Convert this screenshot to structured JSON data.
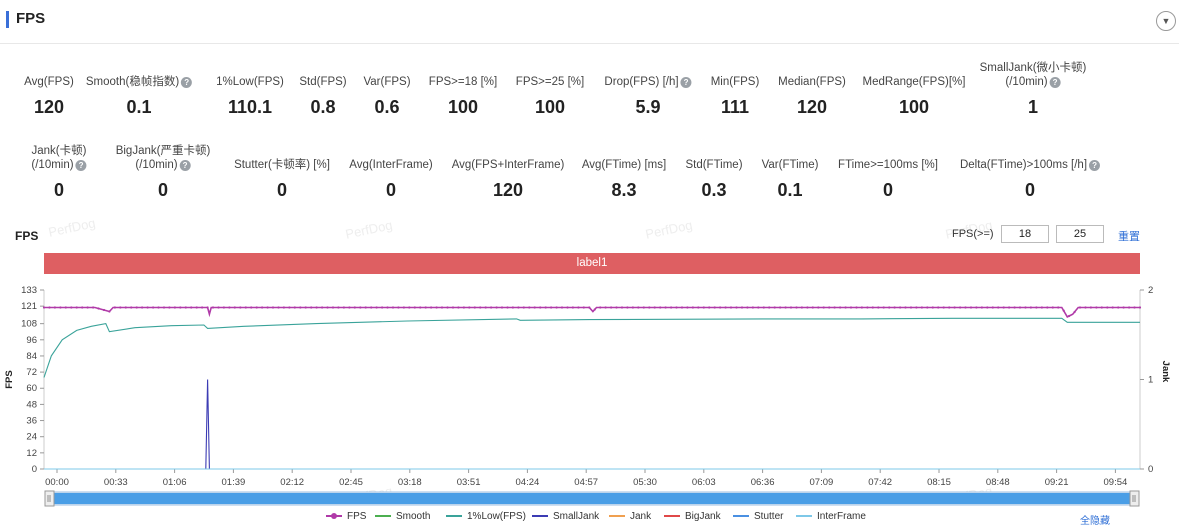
{
  "header": {
    "title": "FPS",
    "collapse_icon": "chevron-down-icon"
  },
  "metrics_row1": [
    {
      "label": "Avg(FPS)",
      "value": "120",
      "help": false
    },
    {
      "label": "Smooth(稳帧指数)",
      "value": "0.1",
      "help": true
    },
    {
      "label": "1%Low(FPS)",
      "value": "110.1",
      "help": false
    },
    {
      "label": "Std(FPS)",
      "value": "0.8",
      "help": false
    },
    {
      "label": "Var(FPS)",
      "value": "0.6",
      "help": false
    },
    {
      "label": "FPS>=18 [%]",
      "value": "100",
      "help": false
    },
    {
      "label": "FPS>=25 [%]",
      "value": "100",
      "help": false
    },
    {
      "label": "Drop(FPS) [/h]",
      "value": "5.9",
      "help": true
    },
    {
      "label": "Min(FPS)",
      "value": "111",
      "help": false
    },
    {
      "label": "Median(FPS)",
      "value": "120",
      "help": false
    },
    {
      "label": "MedRange(FPS)[%]",
      "value": "100",
      "help": false
    },
    {
      "label": "SmallJank(微小卡顿)",
      "label2": "(/10min)",
      "value": "1",
      "help": true
    }
  ],
  "metrics_row2": [
    {
      "label": "Jank(卡顿)",
      "label2": "(/10min)",
      "value": "0",
      "help": true
    },
    {
      "label": "BigJank(严重卡顿)",
      "label2": "(/10min)",
      "value": "0",
      "help": true
    },
    {
      "label": "Stutter(卡顿率) [%]",
      "value": "0",
      "help": false
    },
    {
      "label": "Avg(InterFrame)",
      "value": "0",
      "help": false
    },
    {
      "label": "Avg(FPS+InterFrame)",
      "value": "120",
      "help": false
    },
    {
      "label": "Avg(FTime) [ms]",
      "value": "8.3",
      "help": false
    },
    {
      "label": "Std(FTime)",
      "value": "0.3",
      "help": false
    },
    {
      "label": "Var(FTime)",
      "value": "0.1",
      "help": false
    },
    {
      "label": "FTime>=100ms [%]",
      "value": "0",
      "help": false
    },
    {
      "label": "Delta(FTime)>100ms [/h]",
      "value": "0",
      "help": true
    }
  ],
  "watermark": "PerfDog",
  "controls": {
    "fps_threshold_label": "FPS(>=)",
    "threshold1": "18",
    "threshold2": "25",
    "reset_label": "重置"
  },
  "chart_data": {
    "type": "line",
    "title": "FPS",
    "label_band": "label1",
    "ylabel": "FPS",
    "y2label": "Jank",
    "ylim": [
      0,
      133
    ],
    "y2lim": [
      0,
      2
    ],
    "yticks": [
      0,
      12,
      24,
      36,
      48,
      60,
      72,
      84,
      96,
      108,
      121,
      133
    ],
    "y2ticks": [
      0,
      1,
      2
    ],
    "xticks": [
      "00:00",
      "00:33",
      "01:06",
      "01:39",
      "02:12",
      "02:45",
      "03:18",
      "03:51",
      "04:24",
      "04:57",
      "05:30",
      "06:03",
      "06:36",
      "07:09",
      "07:42",
      "08:15",
      "08:48",
      "09:21",
      "09:54"
    ],
    "x_range_seconds": [
      0,
      603
    ],
    "series": [
      {
        "name": "FPS",
        "color": "#b03aa8",
        "axis": "left",
        "points": [
          [
            0,
            120
          ],
          [
            28,
            120
          ],
          [
            36,
            117
          ],
          [
            38,
            120
          ],
          [
            90,
            120
          ],
          [
            91,
            115
          ],
          [
            92,
            120
          ],
          [
            300,
            120
          ],
          [
            302,
            117
          ],
          [
            304,
            120
          ],
          [
            560,
            120
          ],
          [
            563,
            113
          ],
          [
            566,
            115
          ],
          [
            569,
            120
          ],
          [
            603,
            120
          ]
        ]
      },
      {
        "name": "Smooth",
        "color": "#4caf50",
        "axis": "right",
        "points": [
          [
            0,
            0
          ],
          [
            603,
            0
          ]
        ]
      },
      {
        "name": "1%Low(FPS)",
        "color": "#3aa39a",
        "axis": "left",
        "points": [
          [
            0,
            68
          ],
          [
            4,
            84
          ],
          [
            10,
            96
          ],
          [
            18,
            103
          ],
          [
            26,
            106
          ],
          [
            34,
            108
          ],
          [
            36,
            102
          ],
          [
            50,
            105
          ],
          [
            70,
            106.5
          ],
          [
            88,
            107
          ],
          [
            90,
            104.5
          ],
          [
            110,
            106
          ],
          [
            150,
            108
          ],
          [
            200,
            110
          ],
          [
            260,
            111.5
          ],
          [
            262,
            110.5
          ],
          [
            300,
            111
          ],
          [
            400,
            111.5
          ],
          [
            450,
            111.5
          ],
          [
            500,
            112
          ],
          [
            560,
            112
          ],
          [
            563,
            109
          ],
          [
            603,
            109
          ]
        ]
      },
      {
        "name": "SmallJank",
        "color": "#3c3cb4",
        "axis": "right",
        "points": [
          [
            0,
            0
          ],
          [
            89,
            0
          ],
          [
            90,
            1
          ],
          [
            91,
            0
          ],
          [
            603,
            0
          ]
        ]
      },
      {
        "name": "Jank",
        "color": "#f0a050",
        "axis": "right",
        "points": [
          [
            0,
            0
          ],
          [
            603,
            0
          ]
        ]
      },
      {
        "name": "BigJank",
        "color": "#e04848",
        "axis": "right",
        "points": [
          [
            0,
            0
          ],
          [
            603,
            0
          ]
        ]
      },
      {
        "name": "Stutter",
        "color": "#4a90e2",
        "axis": "right",
        "points": [
          [
            0,
            0
          ],
          [
            603,
            0
          ]
        ]
      },
      {
        "name": "InterFrame",
        "color": "#7ec8e8",
        "axis": "left",
        "points": [
          [
            0,
            0
          ],
          [
            603,
            0
          ]
        ]
      }
    ]
  },
  "legend": {
    "hide_all_label": "全隐藏"
  }
}
